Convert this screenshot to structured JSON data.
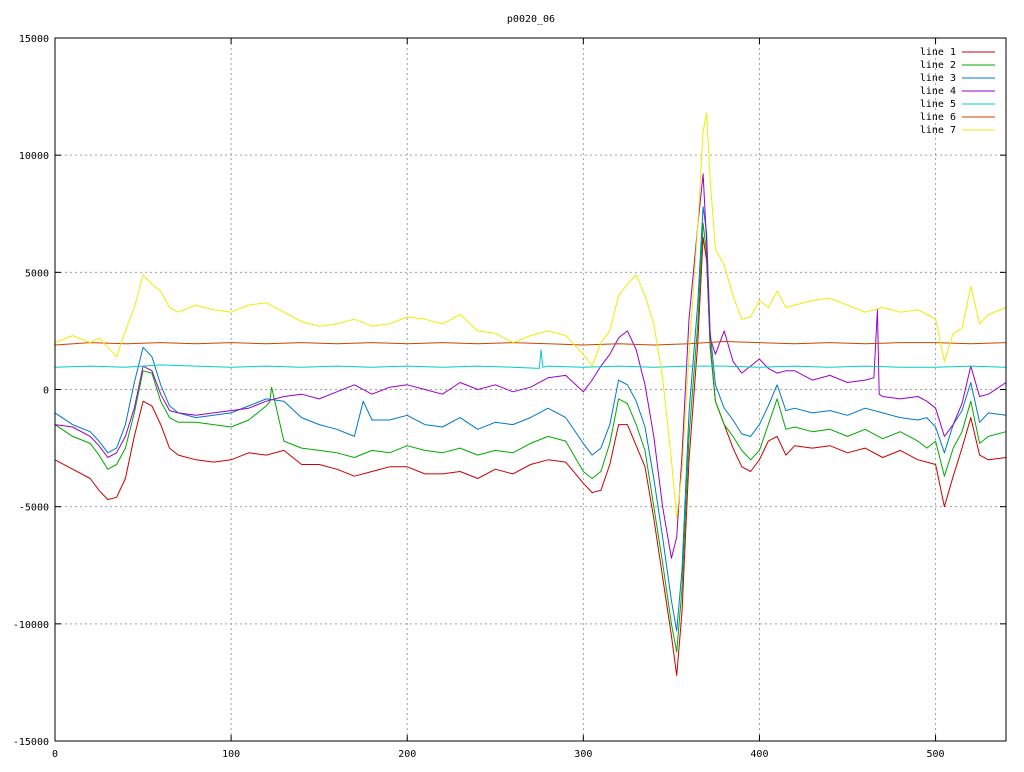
{
  "chart_data": {
    "type": "line",
    "title": "p0020_06",
    "xlabel": "",
    "ylabel": "",
    "xlim": [
      0,
      540
    ],
    "ylim": [
      -15000,
      15000
    ],
    "x_ticks": [
      "0",
      "100",
      "200",
      "300",
      "400",
      "500"
    ],
    "y_ticks": [
      "15000",
      "10000",
      "5000",
      "0",
      "-5000",
      "-10000",
      "-15000"
    ],
    "grid": true,
    "legend_position": "top-right",
    "series": [
      {
        "name": "line 1",
        "color": "#cc0000",
        "x": [
          0,
          10,
          20,
          25,
          30,
          35,
          40,
          45,
          50,
          55,
          60,
          65,
          70,
          80,
          90,
          100,
          110,
          120,
          130,
          140,
          150,
          160,
          170,
          180,
          190,
          200,
          210,
          220,
          230,
          240,
          250,
          260,
          270,
          280,
          290,
          300,
          305,
          310,
          315,
          320,
          325,
          330,
          335,
          340,
          345,
          350,
          353,
          356,
          360,
          365,
          368,
          370,
          372,
          375,
          380,
          385,
          390,
          395,
          400,
          405,
          410,
          415,
          420,
          430,
          440,
          450,
          460,
          470,
          480,
          490,
          495,
          500,
          505,
          510,
          515,
          520,
          525,
          530,
          540
        ],
        "y": [
          -3000,
          -3400,
          -3800,
          -4300,
          -4700,
          -4600,
          -3800,
          -2000,
          -500,
          -700,
          -1500,
          -2500,
          -2800,
          -3000,
          -3100,
          -3000,
          -2700,
          -2800,
          -2600,
          -3200,
          -3200,
          -3400,
          -3700,
          -3500,
          -3300,
          -3300,
          -3600,
          -3600,
          -3500,
          -3800,
          -3400,
          -3600,
          -3200,
          -3000,
          -3100,
          -4000,
          -4400,
          -4300,
          -3200,
          -1500,
          -1500,
          -2400,
          -3300,
          -5500,
          -8000,
          -10500,
          -12200,
          -9500,
          -3000,
          2000,
          6500,
          5500,
          2000,
          -500,
          -1500,
          -2500,
          -3300,
          -3500,
          -3000,
          -2200,
          -2000,
          -2800,
          -2400,
          -2500,
          -2400,
          -2700,
          -2500,
          -2900,
          -2600,
          -3000,
          -3100,
          -3200,
          -5000,
          -3700,
          -2500,
          -1200,
          -2800,
          -3000,
          -2900
        ]
      },
      {
        "name": "line 2",
        "color": "#00aa00",
        "x": [
          0,
          10,
          20,
          25,
          30,
          35,
          40,
          45,
          50,
          55,
          60,
          65,
          70,
          80,
          90,
          100,
          110,
          120,
          122,
          123,
          130,
          140,
          150,
          160,
          170,
          180,
          190,
          200,
          210,
          220,
          230,
          240,
          250,
          260,
          270,
          280,
          290,
          300,
          305,
          310,
          315,
          320,
          325,
          330,
          335,
          340,
          345,
          350,
          353,
          356,
          360,
          365,
          368,
          370,
          372,
          375,
          380,
          385,
          390,
          395,
          400,
          405,
          410,
          415,
          420,
          430,
          440,
          450,
          460,
          470,
          480,
          490,
          495,
          500,
          505,
          510,
          515,
          520,
          525,
          530,
          540
        ],
        "y": [
          -1500,
          -2000,
          -2300,
          -2800,
          -3400,
          -3200,
          -2500,
          -1000,
          800,
          700,
          -500,
          -1200,
          -1400,
          -1400,
          -1500,
          -1600,
          -1300,
          -700,
          -500,
          100,
          -2200,
          -2500,
          -2600,
          -2700,
          -2900,
          -2600,
          -2700,
          -2400,
          -2600,
          -2700,
          -2500,
          -2800,
          -2600,
          -2700,
          -2300,
          -2000,
          -2200,
          -3500,
          -3800,
          -3500,
          -2300,
          -400,
          -600,
          -1500,
          -2600,
          -5000,
          -7400,
          -10000,
          -11200,
          -8500,
          -2000,
          2800,
          7100,
          5800,
          1800,
          -500,
          -1500,
          -2000,
          -2600,
          -3000,
          -2600,
          -1500,
          -400,
          -1700,
          -1600,
          -1800,
          -1700,
          -2000,
          -1700,
          -2100,
          -1800,
          -2200,
          -2500,
          -2200,
          -3700,
          -2500,
          -1800,
          -500,
          -2300,
          -2000,
          -1800
        ]
      },
      {
        "name": "line 3",
        "color": "#0077cc",
        "x": [
          0,
          10,
          20,
          25,
          30,
          35,
          40,
          45,
          50,
          55,
          60,
          65,
          70,
          80,
          90,
          100,
          110,
          120,
          130,
          140,
          150,
          160,
          170,
          175,
          180,
          190,
          200,
          210,
          220,
          230,
          240,
          250,
          260,
          270,
          280,
          290,
          300,
          305,
          310,
          315,
          320,
          325,
          330,
          335,
          340,
          345,
          350,
          353,
          356,
          360,
          365,
          368,
          370,
          372,
          375,
          380,
          385,
          390,
          395,
          400,
          405,
          410,
          415,
          420,
          430,
          440,
          450,
          460,
          470,
          480,
          490,
          495,
          500,
          505,
          510,
          515,
          520,
          525,
          530,
          540
        ],
        "y": [
          -1000,
          -1500,
          -1800,
          -2200,
          -2700,
          -2500,
          -1500,
          300,
          1800,
          1400,
          200,
          -700,
          -1000,
          -1200,
          -1100,
          -1000,
          -700,
          -400,
          -500,
          -1200,
          -1500,
          -1700,
          -2000,
          -500,
          -1300,
          -1300,
          -1100,
          -1500,
          -1600,
          -1200,
          -1700,
          -1400,
          -1500,
          -1200,
          -800,
          -1200,
          -2300,
          -2800,
          -2500,
          -1500,
          400,
          200,
          -500,
          -1600,
          -3800,
          -6300,
          -9000,
          -10300,
          -7700,
          -1000,
          3700,
          7800,
          6700,
          2500,
          200,
          -800,
          -1300,
          -1900,
          -2000,
          -1500,
          -700,
          200,
          -900,
          -800,
          -1000,
          -900,
          -1100,
          -800,
          -1000,
          -1200,
          -1300,
          -1200,
          -1600,
          -2700,
          -1500,
          -900,
          300,
          -1400,
          -1000,
          -1100
        ]
      },
      {
        "name": "line 4",
        "color": "#9900cc",
        "x": [
          0,
          10,
          20,
          25,
          30,
          35,
          40,
          45,
          50,
          55,
          60,
          65,
          70,
          80,
          90,
          100,
          110,
          120,
          130,
          140,
          150,
          160,
          170,
          180,
          190,
          200,
          210,
          220,
          230,
          240,
          250,
          260,
          270,
          280,
          290,
          300,
          305,
          310,
          315,
          320,
          325,
          330,
          335,
          340,
          345,
          350,
          353,
          356,
          360,
          365,
          368,
          370,
          372,
          375,
          380,
          385,
          390,
          395,
          400,
          405,
          410,
          415,
          420,
          430,
          440,
          450,
          460,
          465,
          467,
          468,
          470,
          480,
          490,
          495,
          500,
          505,
          510,
          515,
          520,
          525,
          530,
          540
        ],
        "y": [
          -1500,
          -1600,
          -2000,
          -2400,
          -2900,
          -2700,
          -2000,
          -800,
          1000,
          800,
          -200,
          -900,
          -1000,
          -1100,
          -1000,
          -900,
          -800,
          -500,
          -300,
          -200,
          -400,
          -100,
          200,
          -200,
          100,
          200,
          0,
          -200,
          300,
          0,
          200,
          -100,
          100,
          500,
          600,
          -100,
          400,
          1000,
          1500,
          2200,
          2500,
          1700,
          200,
          -2000,
          -5000,
          -7200,
          -6300,
          -2800,
          3000,
          7000,
          9200,
          6300,
          2200,
          1500,
          2500,
          1200,
          700,
          1000,
          1300,
          900,
          700,
          800,
          800,
          400,
          600,
          300,
          400,
          500,
          3400,
          -200,
          -300,
          -400,
          -300,
          -500,
          -800,
          -2000,
          -1500,
          -600,
          1000,
          -300,
          -200,
          300
        ]
      },
      {
        "name": "line 5",
        "color": "#00cccc",
        "x": [
          0,
          20,
          40,
          60,
          80,
          100,
          120,
          140,
          160,
          180,
          200,
          220,
          240,
          260,
          275,
          276,
          277,
          280,
          300,
          320,
          340,
          360,
          380,
          400,
          420,
          440,
          460,
          480,
          500,
          520,
          540
        ],
        "y": [
          950,
          1000,
          950,
          1050,
          1000,
          950,
          1000,
          950,
          1000,
          950,
          1000,
          950,
          1000,
          950,
          900,
          1700,
          950,
          1000,
          950,
          1000,
          950,
          1000,
          1000,
          950,
          1000,
          950,
          1000,
          950,
          950,
          1000,
          950
        ]
      },
      {
        "name": "line 6",
        "color": "#cc4400",
        "x": [
          0,
          20,
          40,
          60,
          80,
          100,
          120,
          140,
          160,
          180,
          200,
          220,
          240,
          260,
          280,
          300,
          320,
          340,
          360,
          380,
          400,
          420,
          440,
          460,
          480,
          500,
          520,
          540
        ],
        "y": [
          1900,
          2000,
          1950,
          2000,
          1950,
          2000,
          1950,
          2000,
          1950,
          2000,
          1950,
          2000,
          1950,
          2000,
          1950,
          1900,
          1950,
          1900,
          1950,
          2050,
          2000,
          1950,
          2000,
          1950,
          2000,
          2000,
          1950,
          2000
        ]
      },
      {
        "name": "line 7",
        "color": "#eeee00",
        "x": [
          0,
          10,
          20,
          25,
          30,
          35,
          40,
          45,
          50,
          55,
          60,
          65,
          70,
          80,
          90,
          100,
          110,
          120,
          130,
          140,
          150,
          160,
          170,
          180,
          190,
          200,
          210,
          220,
          230,
          240,
          250,
          260,
          270,
          280,
          290,
          300,
          305,
          310,
          315,
          320,
          325,
          330,
          335,
          340,
          345,
          350,
          353,
          356,
          360,
          365,
          368,
          370,
          372,
          375,
          380,
          385,
          390,
          395,
          400,
          405,
          410,
          415,
          420,
          430,
          440,
          450,
          460,
          470,
          480,
          490,
          495,
          500,
          505,
          510,
          515,
          520,
          525,
          530,
          540
        ],
        "y": [
          2000,
          2300,
          2000,
          2200,
          1800,
          1400,
          2500,
          3500,
          4900,
          4500,
          4200,
          3500,
          3300,
          3600,
          3400,
          3300,
          3600,
          3700,
          3300,
          2900,
          2700,
          2800,
          3000,
          2700,
          2800,
          3100,
          3000,
          2800,
          3200,
          2500,
          2400,
          2000,
          2300,
          2500,
          2300,
          1500,
          1000,
          2000,
          2500,
          4000,
          4500,
          4900,
          4000,
          2800,
          500,
          -3000,
          -5500,
          -3500,
          1500,
          7000,
          11000,
          11800,
          9000,
          6000,
          5300,
          4000,
          3000,
          3100,
          3800,
          3500,
          4200,
          3500,
          3600,
          3800,
          3900,
          3600,
          3300,
          3500,
          3300,
          3400,
          3200,
          3000,
          1200,
          2400,
          2600,
          4400,
          2800,
          3200,
          3500
        ]
      }
    ]
  }
}
